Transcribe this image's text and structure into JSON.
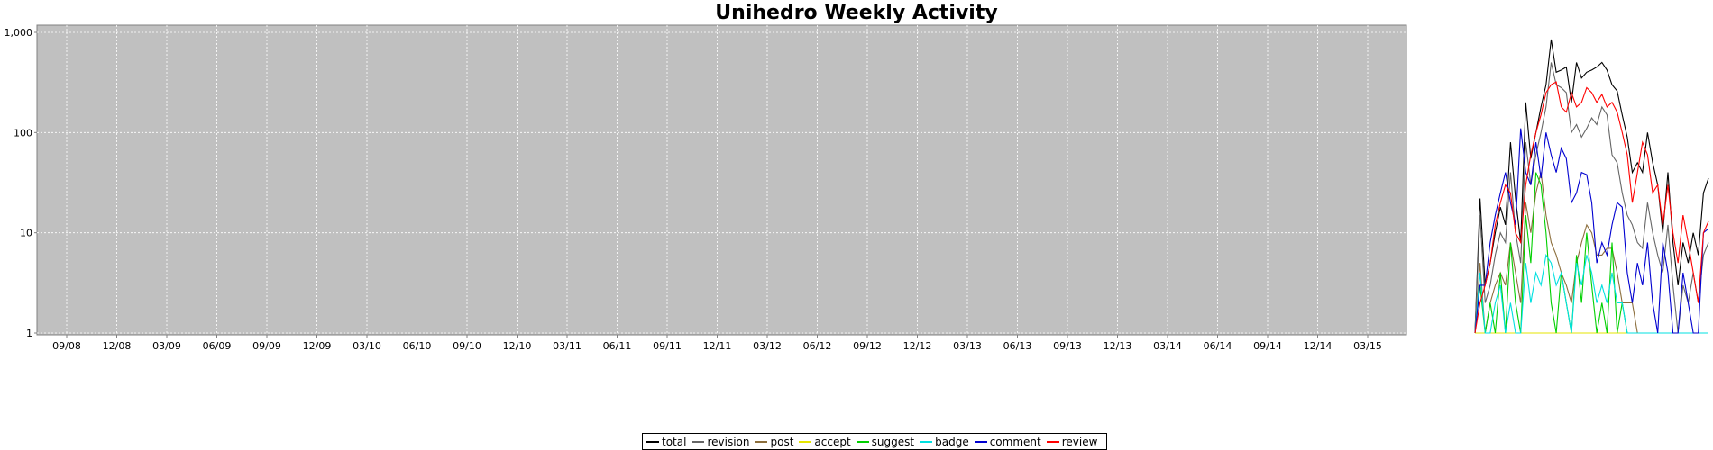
{
  "chart_data": {
    "type": "line",
    "title": "Unihedro Weekly Activity",
    "xlabel": "",
    "ylabel": "",
    "yscale": "log",
    "ylim": [
      1,
      1000
    ],
    "y_ticks": [
      {
        "value": 1,
        "label": "1"
      },
      {
        "value": 10,
        "label": "10"
      },
      {
        "value": 100,
        "label": "100"
      },
      {
        "value": 1000,
        "label": "1,000"
      }
    ],
    "x_ticks": [
      "09/08",
      "12/08",
      "03/09",
      "06/09",
      "09/09",
      "12/09",
      "03/10",
      "06/10",
      "09/10",
      "12/10",
      "03/11",
      "06/11",
      "09/11",
      "12/11",
      "03/12",
      "06/12",
      "09/12",
      "12/12",
      "03/13",
      "06/13",
      "09/13",
      "12/13",
      "03/14",
      "06/14",
      "09/14",
      "12/14",
      "03/15"
    ],
    "grid": true,
    "legend_position": "bottom",
    "series": [
      {
        "name": "total",
        "color": "#000000",
        "values": [
          0,
          22,
          3,
          5,
          10,
          18,
          12,
          80,
          22,
          8,
          200,
          55,
          100,
          180,
          300,
          850,
          400,
          420,
          450,
          200,
          500,
          350,
          400,
          420,
          450,
          500,
          420,
          300,
          260,
          150,
          90,
          40,
          50,
          40,
          100,
          50,
          30,
          10,
          40,
          8,
          3,
          8,
          5,
          10,
          6,
          25,
          35
        ]
      },
      {
        "name": "revision",
        "color": "#666666",
        "values": [
          0,
          15,
          2,
          3,
          6,
          10,
          8,
          40,
          10,
          5,
          80,
          30,
          60,
          100,
          180,
          500,
          300,
          280,
          250,
          100,
          120,
          90,
          110,
          140,
          120,
          180,
          150,
          60,
          50,
          25,
          15,
          12,
          8,
          7,
          20,
          10,
          6,
          4,
          12,
          3,
          1,
          3,
          2,
          4,
          2,
          6,
          8
        ]
      },
      {
        "name": "post",
        "color": "#8c6e3c",
        "values": [
          1,
          5,
          1,
          2,
          3,
          4,
          3,
          8,
          4,
          2,
          20,
          10,
          25,
          40,
          15,
          8,
          6,
          4,
          3,
          2,
          5,
          8,
          12,
          10,
          6,
          6,
          7,
          7,
          4,
          2,
          2,
          2,
          1,
          1,
          1,
          1,
          1,
          1,
          1,
          1,
          1,
          1,
          1,
          1,
          1,
          1,
          1
        ]
      },
      {
        "name": "accept",
        "color": "#e6e600",
        "values": [
          1,
          1,
          1,
          1,
          1,
          1,
          1,
          1,
          1,
          1,
          1,
          1,
          1,
          1,
          1,
          1,
          1,
          1,
          1,
          1,
          1,
          1,
          1,
          1,
          1,
          1,
          1,
          1,
          1,
          1,
          1,
          1,
          1,
          1,
          1,
          1,
          1,
          1,
          1,
          1,
          1,
          1,
          1,
          1,
          1,
          1,
          1
        ]
      },
      {
        "name": "suggest",
        "color": "#00d000",
        "values": [
          1,
          3,
          1,
          2,
          1,
          4,
          1,
          8,
          2,
          1,
          15,
          5,
          40,
          30,
          10,
          2,
          1,
          4,
          2,
          1,
          6,
          2,
          10,
          3,
          1,
          2,
          1,
          8,
          1,
          2,
          1,
          1,
          1,
          1,
          1,
          1,
          1,
          1,
          1,
          1,
          1,
          1,
          1,
          1,
          1,
          1,
          1
        ]
      },
      {
        "name": "badge",
        "color": "#00e0e0",
        "values": [
          1,
          4,
          1,
          1,
          2,
          3,
          1,
          2,
          1,
          1,
          5,
          2,
          4,
          3,
          6,
          5,
          3,
          4,
          2,
          1,
          5,
          3,
          6,
          4,
          2,
          3,
          2,
          4,
          2,
          2,
          1,
          1,
          1,
          1,
          1,
          1,
          1,
          1,
          1,
          1,
          1,
          1,
          1,
          1,
          1,
          1,
          1
        ]
      },
      {
        "name": "comment",
        "color": "#0000d0",
        "values": [
          1,
          3,
          3,
          8,
          15,
          25,
          40,
          20,
          12,
          110,
          40,
          30,
          80,
          35,
          100,
          60,
          40,
          70,
          55,
          20,
          25,
          40,
          38,
          20,
          5,
          8,
          6,
          12,
          20,
          18,
          4,
          2,
          5,
          3,
          8,
          2,
          1,
          8,
          4,
          1,
          1,
          4,
          2,
          1,
          1,
          10,
          11
        ]
      },
      {
        "name": "review",
        "color": "#ff0000",
        "values": [
          1,
          2,
          3,
          5,
          12,
          20,
          30,
          25,
          10,
          8,
          30,
          60,
          100,
          150,
          250,
          300,
          320,
          180,
          160,
          250,
          180,
          200,
          280,
          250,
          200,
          240,
          180,
          200,
          160,
          100,
          60,
          20,
          40,
          80,
          60,
          25,
          30,
          12,
          30,
          10,
          5,
          15,
          8,
          4,
          2,
          10,
          13
        ]
      }
    ]
  }
}
